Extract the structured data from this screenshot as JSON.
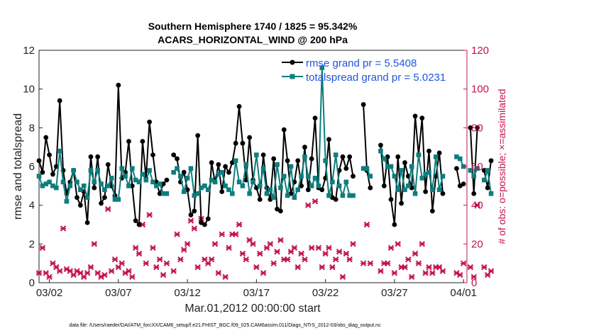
{
  "chart_data": {
    "type": "line",
    "title": [
      "Southern Hemisphere 1740 / 1825 = 95.342%",
      "ACARS_HORIZONTAL_WIND @ 200 hPa"
    ],
    "xlabel": "Mar.01,2012 00:00:00 start",
    "ylabel": "rmse and totalspread",
    "ylabel_right": "# of obs: o=possible; ×=assimilated",
    "footer": "data file: /Users/raeder/DAI/ATM_forcXX/CAM6_setup/f.e21.FHIST_BGC.f09_025.CAM6assim.011/Diags_NTrS_2012-03/obs_diag_output.nc",
    "x_ticks": [
      "03/02",
      "03/07",
      "03/12",
      "03/17",
      "03/22",
      "03/27",
      "04/01"
    ],
    "x_tick_days": [
      2,
      7,
      12,
      17,
      22,
      27,
      32
    ],
    "xlim_days": [
      1.25,
      32.25
    ],
    "y_ticks": [
      0,
      2,
      4,
      6,
      8,
      10,
      12
    ],
    "ylim": [
      0,
      12
    ],
    "y_right_ticks": [
      0,
      20,
      40,
      60,
      80,
      100,
      120
    ],
    "ylim_right": [
      0,
      120
    ],
    "colors": {
      "rmse": "#000000",
      "spread": "#0f7d7d",
      "obs": "#c3134d",
      "legend_text": "#1f55e0"
    },
    "series": [
      {
        "name": "rmse grand pr = 5.5408",
        "x_start_day": 1.25,
        "step_days": 0.25,
        "values": [
          6.3,
          5.7,
          7.5,
          6.6,
          5.6,
          6.0,
          9.4,
          5.8,
          4.6,
          5.2,
          5.8,
          4.4,
          4.0,
          4.7,
          3.1,
          6.5,
          4.9,
          6.5,
          4.1,
          4.4,
          6.1,
          5.0,
          4.5,
          10.2,
          5.4,
          5.7,
          7.3,
          5.0,
          3.2,
          3.0,
          7.3,
          5.4,
          8.3,
          6.6,
          5.2,
          4.6,
          5.1,
          5.3,
          null,
          6.6,
          6.4,
          5.2,
          5.7,
          4.8,
          3.5,
          3.7,
          7.6,
          3.1,
          3.0,
          3.3,
          6.2,
          5.2,
          6.1,
          4.7,
          6.0,
          5.7,
          6.2,
          7.2,
          9.1,
          7.2,
          5.3,
          7.5,
          5.3,
          4.9,
          4.3,
          6.6,
          4.9,
          4.3,
          6.4,
          3.8,
          3.7,
          7.9,
          6.3,
          4.6,
          5.2,
          6.3,
          5.0,
          7.0,
          4.8,
          6.4,
          8.5,
          4.9,
          4.8,
          5.4,
          7.4,
          4.4,
          4.3,
          5.8,
          6.5,
          5.9,
          6.5,
          5.5,
          null,
          null,
          9.2,
          5.8,
          4.9,
          null,
          null,
          7.1,
          5.0,
          6.5,
          4.3,
          3.0,
          6.5,
          4.1,
          6.2,
          5.5,
          4.9,
          8.6,
          6.6,
          8.5,
          4.7,
          6.8,
          3.7,
          5.5,
          6.7,
          4.6,
          null,
          null,
          null,
          5.9,
          5.0,
          5.1,
          null,
          8.0,
          4.6,
          8.0,
          null,
          5.8,
          4.9,
          6.3
        ]
      },
      {
        "name": "totalspread grand pr = 5.0231",
        "x_start_day": 1.25,
        "step_days": 0.25,
        "values": [
          5.5,
          5.0,
          5.1,
          5.2,
          5.0,
          4.9,
          6.8,
          5.2,
          4.2,
          5.0,
          5.8,
          5.2,
          4.8,
          5.0,
          4.4,
          5.8,
          5.2,
          5.8,
          5.1,
          4.8,
          5.0,
          5.4,
          4.3,
          4.3,
          5.9,
          5.5,
          5.0,
          5.9,
          5.3,
          5.2,
          5.6,
          5.3,
          5.8,
          5.2,
          5.0,
          5.1,
          4.6,
          4.6,
          null,
          5.7,
          5.9,
          5.5,
          4.7,
          5.4,
          5.9,
          4.5,
          4.6,
          4.9,
          5.0,
          4.8,
          5.3,
          5.2,
          5.6,
          5.7,
          5.0,
          4.8,
          4.6,
          6.3,
          5.2,
          5.0,
          6.1,
          4.6,
          5.2,
          6.6,
          5.0,
          5.9,
          4.6,
          4.8,
          4.4,
          6.1,
          4.9,
          5.5,
          4.5,
          6.0,
          4.4,
          4.8,
          5.5,
          6.5,
          5.5,
          5.0,
          5.4,
          5.0,
          11.1,
          6.3,
          4.5,
          5.2,
          6.6,
          5.0,
          4.5,
          5.2,
          4.5,
          4.5,
          null,
          null,
          5.9,
          5.9,
          5.5,
          null,
          null,
          6.8,
          6.4,
          6.0,
          6.0,
          5.5,
          4.8,
          5.8,
          4.8,
          5.0,
          6.0,
          4.6,
          6.6,
          5.4,
          5.6,
          5.7,
          4.8,
          6.5,
          4.8,
          5.5,
          null,
          null,
          null,
          6.5,
          6.4,
          6.0,
          null,
          5.8,
          5.5,
          5.9,
          null,
          5.3,
          5.8,
          4.6
        ]
      }
    ],
    "obs": {
      "x_start_day": 1.25,
      "step_days": 0.25,
      "assimilated": [
        5,
        18,
        5,
        3,
        10,
        8,
        6,
        28,
        7,
        6,
        4,
        6,
        5,
        3,
        5,
        8,
        20,
        5,
        3,
        4,
        38,
        6,
        12,
        8,
        10,
        5,
        6,
        3,
        18,
        15,
        30,
        10,
        35,
        18,
        8,
        12,
        4,
        10,
        null,
        6,
        25,
        12,
        17,
        20,
        32,
        28,
        8,
        33,
        12,
        10,
        12,
        20,
        5,
        25,
        3,
        18,
        25,
        25,
        30,
        15,
        12,
        22,
        20,
        8,
        15,
        5,
        18,
        20,
        10,
        16,
        22,
        12,
        12,
        16,
        18,
        8,
        15,
        12,
        40,
        18,
        42,
        18,
        8,
        15,
        18,
        8,
        12,
        16,
        3,
        15,
        12,
        20,
        null,
        null,
        10,
        30,
        10,
        null,
        null,
        6,
        10,
        10,
        18,
        5,
        20,
        8,
        8,
        12,
        3,
        15,
        10,
        20,
        5,
        8,
        5,
        8,
        8,
        6,
        null,
        null,
        null,
        5,
        4,
        10,
        null,
        8,
        3,
        40,
        null,
        8,
        4,
        6
      ]
    },
    "legend": [
      {
        "label": "rmse grand pr = 5.5408",
        "color": "#000000"
      },
      {
        "label": "totalspread grand pr = 5.0231",
        "color": "#0f7d7d"
      }
    ]
  }
}
